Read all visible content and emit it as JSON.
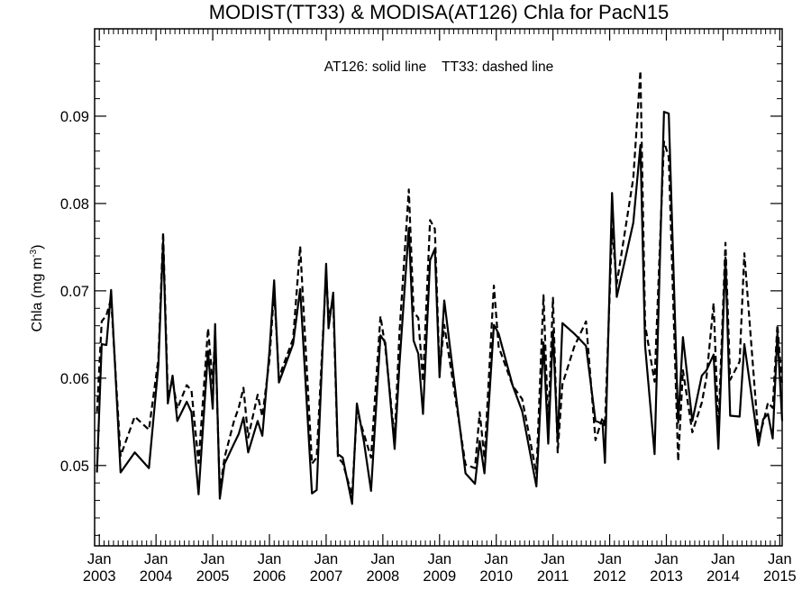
{
  "chart_data": {
    "type": "line",
    "title": "MODIST(TT33) & MODISA(AT126)  Chla for PacN15",
    "annotation": "AT126: solid line    TT33: dashed line",
    "ylabel": "Chla (mg m",
    "ylabel_sup": "-3",
    "ylabel_close": ")",
    "xlim": [
      2002.917,
      2015.042
    ],
    "ylim": [
      0.0408,
      0.1
    ],
    "y_ticks": [
      0.05,
      0.06,
      0.07,
      0.08,
      0.09
    ],
    "y_tick_labels": [
      "0.05",
      "0.06",
      "0.07",
      "0.08",
      "0.09"
    ],
    "x_ticks": [
      {
        "x": 2003,
        "month": "Jan",
        "year": "2003"
      },
      {
        "x": 2004,
        "month": "Jan",
        "year": "2004"
      },
      {
        "x": 2005,
        "month": "Jan",
        "year": "2005"
      },
      {
        "x": 2006,
        "month": "Jan",
        "year": "2006"
      },
      {
        "x": 2007,
        "month": "Jan",
        "year": "2007"
      },
      {
        "x": 2008,
        "month": "Jan",
        "year": "2008"
      },
      {
        "x": 2009,
        "month": "Jan",
        "year": "2009"
      },
      {
        "x": 2010,
        "month": "Jan",
        "year": "2010"
      },
      {
        "x": 2011,
        "month": "Jan",
        "year": "2011"
      },
      {
        "x": 2012,
        "month": "Jan",
        "year": "2012"
      },
      {
        "x": 2013,
        "month": "Jan",
        "year": "2013"
      },
      {
        "x": 2014,
        "month": "Jan",
        "year": "2014"
      },
      {
        "x": 2015,
        "month": "Jan",
        "year": "2015"
      }
    ],
    "series": [
      {
        "name": "AT126",
        "style": "solid",
        "color": "#000000",
        "points": [
          [
            2002.958,
            0.0492
          ],
          [
            2003.042,
            0.0639
          ],
          [
            2003.125,
            0.0638
          ],
          [
            2003.208,
            0.0701
          ],
          [
            2003.375,
            0.0492
          ],
          [
            2003.625,
            0.0515
          ],
          [
            2003.875,
            0.0497
          ],
          [
            2004.042,
            0.0615
          ],
          [
            2004.125,
            0.0757
          ],
          [
            2004.208,
            0.0571
          ],
          [
            2004.292,
            0.0603
          ],
          [
            2004.375,
            0.0551
          ],
          [
            2004.542,
            0.0573
          ],
          [
            2004.625,
            0.0561
          ],
          [
            2004.75,
            0.0467
          ],
          [
            2004.917,
            0.0631
          ],
          [
            2005.0,
            0.0565
          ],
          [
            2005.042,
            0.0662
          ],
          [
            2005.125,
            0.0462
          ],
          [
            2005.208,
            0.0502
          ],
          [
            2005.375,
            0.0525
          ],
          [
            2005.458,
            0.0536
          ],
          [
            2005.542,
            0.0555
          ],
          [
            2005.625,
            0.0515
          ],
          [
            2005.792,
            0.0551
          ],
          [
            2005.875,
            0.0534
          ],
          [
            2006.0,
            0.0631
          ],
          [
            2006.083,
            0.0712
          ],
          [
            2006.167,
            0.0595
          ],
          [
            2006.417,
            0.0639
          ],
          [
            2006.542,
            0.0702
          ],
          [
            2006.75,
            0.0468
          ],
          [
            2006.833,
            0.0472
          ],
          [
            2007.0,
            0.0731
          ],
          [
            2007.042,
            0.0657
          ],
          [
            2007.125,
            0.0698
          ],
          [
            2007.208,
            0.0513
          ],
          [
            2007.292,
            0.0509
          ],
          [
            2007.458,
            0.0456
          ],
          [
            2007.542,
            0.0571
          ],
          [
            2007.667,
            0.0527
          ],
          [
            2007.792,
            0.0471
          ],
          [
            2007.958,
            0.0649
          ],
          [
            2008.042,
            0.0641
          ],
          [
            2008.208,
            0.0519
          ],
          [
            2008.292,
            0.0615
          ],
          [
            2008.458,
            0.0772
          ],
          [
            2008.542,
            0.0643
          ],
          [
            2008.625,
            0.0628
          ],
          [
            2008.708,
            0.0559
          ],
          [
            2008.833,
            0.0735
          ],
          [
            2008.917,
            0.0748
          ],
          [
            2009.0,
            0.0601
          ],
          [
            2009.083,
            0.0689
          ],
          [
            2009.458,
            0.0491
          ],
          [
            2009.625,
            0.0479
          ],
          [
            2009.708,
            0.0528
          ],
          [
            2009.792,
            0.0491
          ],
          [
            2009.958,
            0.0661
          ],
          [
            2010.042,
            0.0651
          ],
          [
            2010.292,
            0.0591
          ],
          [
            2010.458,
            0.0562
          ],
          [
            2010.708,
            0.0476
          ],
          [
            2010.833,
            0.0641
          ],
          [
            2010.917,
            0.0525
          ],
          [
            2011.0,
            0.0654
          ],
          [
            2011.083,
            0.0527
          ],
          [
            2011.167,
            0.0663
          ],
          [
            2011.375,
            0.0651
          ],
          [
            2011.583,
            0.0637
          ],
          [
            2011.75,
            0.0551
          ],
          [
            2011.875,
            0.0548
          ],
          [
            2011.917,
            0.0503
          ],
          [
            2012.042,
            0.0812
          ],
          [
            2012.125,
            0.0693
          ],
          [
            2012.417,
            0.0778
          ],
          [
            2012.542,
            0.0867
          ],
          [
            2012.625,
            0.0637
          ],
          [
            2012.792,
            0.0513
          ],
          [
            2012.958,
            0.0905
          ],
          [
            2013.042,
            0.0903
          ],
          [
            2013.208,
            0.0549
          ],
          [
            2013.292,
            0.0647
          ],
          [
            2013.458,
            0.0551
          ],
          [
            2013.625,
            0.0603
          ],
          [
            2013.708,
            0.0609
          ],
          [
            2013.833,
            0.0627
          ],
          [
            2013.917,
            0.0519
          ],
          [
            2014.042,
            0.0738
          ],
          [
            2014.125,
            0.0557
          ],
          [
            2014.292,
            0.0556
          ],
          [
            2014.375,
            0.0639
          ],
          [
            2014.625,
            0.0523
          ],
          [
            2014.708,
            0.0553
          ],
          [
            2014.792,
            0.0559
          ],
          [
            2014.875,
            0.0531
          ],
          [
            2014.958,
            0.0651
          ],
          [
            2015.042,
            0.0551
          ]
        ]
      },
      {
        "name": "TT33",
        "style": "dashed",
        "color": "#000000",
        "points": [
          [
            2002.958,
            0.0561
          ],
          [
            2003.042,
            0.0665
          ],
          [
            2003.125,
            0.0672
          ],
          [
            2003.208,
            0.0691
          ],
          [
            2003.375,
            0.0511
          ],
          [
            2003.625,
            0.0556
          ],
          [
            2003.875,
            0.0541
          ],
          [
            2004.042,
            0.0622
          ],
          [
            2004.125,
            0.0767
          ],
          [
            2004.208,
            0.0581
          ],
          [
            2004.292,
            0.0598
          ],
          [
            2004.375,
            0.0565
          ],
          [
            2004.542,
            0.0592
          ],
          [
            2004.625,
            0.0586
          ],
          [
            2004.75,
            0.0503
          ],
          [
            2004.917,
            0.0657
          ],
          [
            2005.0,
            0.0594
          ],
          [
            2005.042,
            0.0651
          ],
          [
            2005.125,
            0.0471
          ],
          [
            2005.208,
            0.0509
          ],
          [
            2005.375,
            0.0551
          ],
          [
            2005.458,
            0.0566
          ],
          [
            2005.542,
            0.0589
          ],
          [
            2005.625,
            0.0532
          ],
          [
            2005.792,
            0.0581
          ],
          [
            2005.875,
            0.0556
          ],
          [
            2006.0,
            0.0621
          ],
          [
            2006.083,
            0.0701
          ],
          [
            2006.167,
            0.0601
          ],
          [
            2006.417,
            0.0645
          ],
          [
            2006.542,
            0.0751
          ],
          [
            2006.75,
            0.0502
          ],
          [
            2006.833,
            0.0509
          ],
          [
            2007.0,
            0.0721
          ],
          [
            2007.042,
            0.0672
          ],
          [
            2007.125,
            0.0686
          ],
          [
            2007.208,
            0.0509
          ],
          [
            2007.292,
            0.0503
          ],
          [
            2007.458,
            0.0466
          ],
          [
            2007.542,
            0.0563
          ],
          [
            2007.667,
            0.0536
          ],
          [
            2007.792,
            0.0509
          ],
          [
            2007.958,
            0.0671
          ],
          [
            2008.042,
            0.0636
          ],
          [
            2008.208,
            0.0531
          ],
          [
            2008.292,
            0.0651
          ],
          [
            2008.458,
            0.0816
          ],
          [
            2008.542,
            0.0676
          ],
          [
            2008.625,
            0.0669
          ],
          [
            2008.708,
            0.0596
          ],
          [
            2008.833,
            0.0781
          ],
          [
            2008.917,
            0.0771
          ],
          [
            2009.0,
            0.0608
          ],
          [
            2009.083,
            0.0661
          ],
          [
            2009.458,
            0.0501
          ],
          [
            2009.625,
            0.0497
          ],
          [
            2009.708,
            0.0561
          ],
          [
            2009.792,
            0.0508
          ],
          [
            2009.958,
            0.0706
          ],
          [
            2010.042,
            0.0636
          ],
          [
            2010.292,
            0.0591
          ],
          [
            2010.458,
            0.0576
          ],
          [
            2010.708,
            0.0491
          ],
          [
            2010.833,
            0.0695
          ],
          [
            2010.917,
            0.0546
          ],
          [
            2011.0,
            0.0692
          ],
          [
            2011.083,
            0.0515
          ],
          [
            2011.167,
            0.0593
          ],
          [
            2011.375,
            0.0636
          ],
          [
            2011.583,
            0.0665
          ],
          [
            2011.75,
            0.0529
          ],
          [
            2011.875,
            0.0555
          ],
          [
            2011.917,
            0.0545
          ],
          [
            2012.042,
            0.0771
          ],
          [
            2012.125,
            0.0708
          ],
          [
            2012.417,
            0.0829
          ],
          [
            2012.542,
            0.0952
          ],
          [
            2012.625,
            0.0661
          ],
          [
            2012.792,
            0.0596
          ],
          [
            2012.958,
            0.0871
          ],
          [
            2013.042,
            0.0853
          ],
          [
            2013.208,
            0.0505
          ],
          [
            2013.292,
            0.0609
          ],
          [
            2013.458,
            0.0538
          ],
          [
            2013.625,
            0.0572
          ],
          [
            2013.708,
            0.0601
          ],
          [
            2013.833,
            0.0686
          ],
          [
            2013.917,
            0.0541
          ],
          [
            2014.042,
            0.0755
          ],
          [
            2014.125,
            0.0598
          ],
          [
            2014.292,
            0.0619
          ],
          [
            2014.375,
            0.0743
          ],
          [
            2014.625,
            0.0531
          ],
          [
            2014.708,
            0.0549
          ],
          [
            2014.792,
            0.0572
          ],
          [
            2014.875,
            0.0566
          ],
          [
            2014.958,
            0.0661
          ],
          [
            2015.042,
            0.0591
          ]
        ]
      }
    ]
  }
}
